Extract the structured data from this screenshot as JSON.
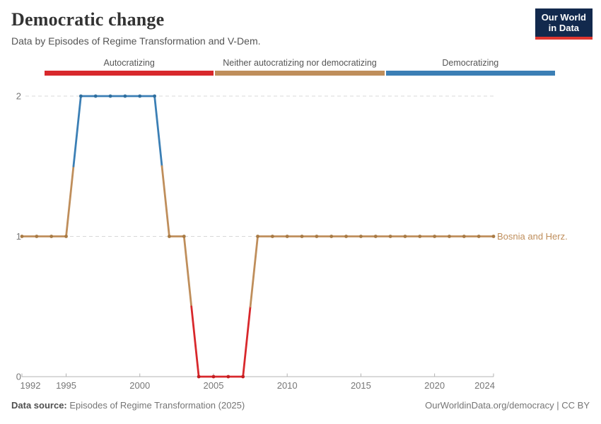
{
  "header": {
    "title": "Democratic change",
    "subtitle": "Data by Episodes of Regime Transformation and V-Dem.",
    "logo": {
      "line1": "Our World",
      "line2": "in Data",
      "bg_color": "#12294d",
      "accent_color": "#e0362f"
    }
  },
  "chart_data": {
    "type": "line",
    "title": "Democratic change",
    "entity_label": "Bosnia and Herz.",
    "x": [
      1992,
      1993,
      1994,
      1995,
      1996,
      1997,
      1998,
      1999,
      2000,
      2001,
      2002,
      2003,
      2004,
      2005,
      2006,
      2007,
      2008,
      2009,
      2010,
      2011,
      2012,
      2013,
      2014,
      2015,
      2016,
      2017,
      2018,
      2019,
      2020,
      2021,
      2022,
      2023,
      2024
    ],
    "series": [
      {
        "name": "Bosnia and Herz.",
        "values": [
          1,
          1,
          1,
          1,
          2,
          2,
          2,
          2,
          2,
          2,
          1,
          1,
          0,
          0,
          0,
          0,
          1,
          1,
          1,
          1,
          1,
          1,
          1,
          1,
          1,
          1,
          1,
          1,
          1,
          1,
          1,
          1,
          1
        ],
        "episodes": [
          "neither",
          "neither",
          "neither",
          "neither",
          "democratizing",
          "democratizing",
          "democratizing",
          "democratizing",
          "democratizing",
          "democratizing",
          "neither",
          "neither",
          "autocratizing",
          "autocratizing",
          "autocratizing",
          "autocratizing",
          "neither",
          "neither",
          "neither",
          "neither",
          "neither",
          "neither",
          "neither",
          "neither",
          "neither",
          "neither",
          "neither",
          "neither",
          "neither",
          "neither",
          "neither",
          "neither",
          "neither"
        ]
      }
    ],
    "legend": [
      {
        "key": "autocratizing",
        "label": "Autocratizing",
        "color": "#d8282c",
        "dot_color": "#c31e21"
      },
      {
        "key": "neither",
        "label": "Neither autocratizing nor democratizing",
        "color": "#bf8e5b",
        "dot_color": "#a87a44"
      },
      {
        "key": "democratizing",
        "label": "Democratizing",
        "color": "#3b7fb5",
        "dot_color": "#2e6e9e"
      }
    ],
    "xticks": [
      1992,
      1995,
      2000,
      2005,
      2010,
      2015,
      2020,
      2024
    ],
    "yticks": [
      0,
      1,
      2
    ],
    "xlim": [
      1992,
      2024
    ],
    "ylim": [
      0,
      2
    ],
    "grid": "horizontal-dashed",
    "legend_position": "top"
  },
  "footer": {
    "source_label": "Data source:",
    "source_value": "Episodes of Regime Transformation (2025)",
    "citation": "OurWorldinData.org/democracy | CC BY"
  }
}
